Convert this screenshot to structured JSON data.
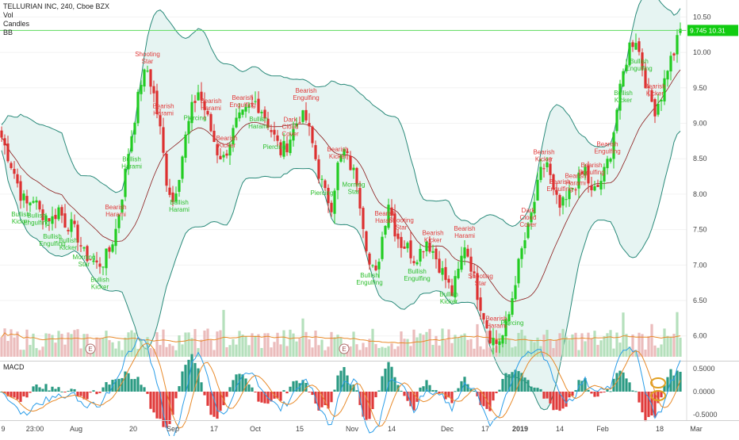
{
  "symbol_line": "TELLURIAN INC, 240, Cboe BZX",
  "indicators": [
    "Vol",
    "Candles",
    "BB"
  ],
  "macd_label": "MACD",
  "price_badge": "9.745 10.31",
  "colors": {
    "bull": "#22cc22",
    "bear": "#dd3030",
    "bb_band": "#2a8a7a",
    "bb_fill": "#e6f4f2",
    "bb_mid": "#8b1a1a",
    "vol_ma": "#e88a2a",
    "macd_line": "#2a9de8",
    "signal_line": "#e88a2a",
    "hline": "#5ddc5d",
    "badge": "#11cc11"
  },
  "chart_data": [
    {
      "type": "candlestick",
      "title": "TELLURIAN INC, 240, Cboe BZX",
      "x_tick_labels": [
        "9",
        "23:00",
        "Aug",
        "20",
        "Sep",
        "17",
        "Oct",
        "15",
        "Nov",
        "14",
        "Dec",
        "17",
        "2019",
        "14",
        "Feb",
        "18",
        "Mar"
      ],
      "y_tick_labels": [
        "10.50",
        "10.00",
        "9.50",
        "9.00",
        "8.50",
        "8.00",
        "7.50",
        "7.00",
        "6.50",
        "6.00"
      ],
      "ylim": [
        5.65,
        10.65
      ],
      "last_close": 10.31,
      "price_line": 10.31,
      "close_path": [
        8.8,
        8.55,
        8.3,
        8.0,
        7.85,
        7.95,
        7.75,
        7.7,
        7.65,
        7.8,
        7.6,
        7.55,
        7.4,
        7.15,
        7.1,
        7.0,
        7.05,
        7.2,
        7.5,
        8.0,
        8.6,
        9.1,
        9.6,
        9.75,
        9.4,
        8.9,
        8.2,
        7.9,
        8.3,
        8.8,
        9.2,
        9.45,
        9.2,
        8.9,
        8.6,
        8.5,
        8.75,
        9.0,
        9.1,
        9.2,
        9.3,
        9.2,
        9.0,
        8.8,
        8.6,
        8.7,
        8.9,
        9.1,
        9.05,
        8.7,
        8.3,
        8.0,
        7.85,
        8.4,
        8.6,
        8.4,
        8.2,
        7.6,
        7.0,
        6.85,
        7.4,
        7.9,
        7.5,
        7.3,
        7.25,
        7.1,
        7.2,
        7.35,
        7.2,
        7.0,
        6.8,
        6.6,
        6.9,
        7.3,
        7.0,
        6.6,
        6.3,
        6.0,
        5.9,
        6.0,
        6.3,
        6.8,
        7.2,
        7.5,
        7.9,
        8.3,
        8.45,
        8.0,
        7.8,
        7.9,
        8.1,
        8.2,
        8.35,
        8.0,
        8.1,
        8.3,
        8.6,
        9.2,
        9.7,
        10.1,
        10.2,
        9.8,
        9.4,
        9.2,
        9.4,
        9.8,
        10.0,
        10.31
      ],
      "annotations": [
        {
          "text": "Bearish Engulfing",
          "kind": "bear"
        },
        {
          "text": "Bearish Harami",
          "kind": "bear"
        },
        {
          "text": "Shooting Star",
          "kind": "bear"
        },
        {
          "text": "Bearish Kicker",
          "kind": "bear"
        },
        {
          "text": "Dark Cloud Cover",
          "kind": "bear"
        },
        {
          "text": "Bullish Engulfing",
          "kind": "bull"
        },
        {
          "text": "Bullish Harami",
          "kind": "bull"
        },
        {
          "text": "Morning Star",
          "kind": "bull"
        },
        {
          "text": "Piercing",
          "kind": "bull"
        },
        {
          "text": "Bullish Kicker",
          "kind": "bull"
        }
      ],
      "earnings_markers": [
        "E",
        "E"
      ]
    },
    {
      "type": "bar",
      "title": "MACD",
      "y_tick_labels": [
        "0.5000",
        "0.0000",
        "-0.5000"
      ],
      "ylim": [
        -0.62,
        0.62
      ],
      "series": [
        {
          "name": "MACD",
          "kind": "line"
        },
        {
          "name": "Signal",
          "kind": "line"
        },
        {
          "name": "Histogram",
          "kind": "bar"
        }
      ]
    }
  ]
}
